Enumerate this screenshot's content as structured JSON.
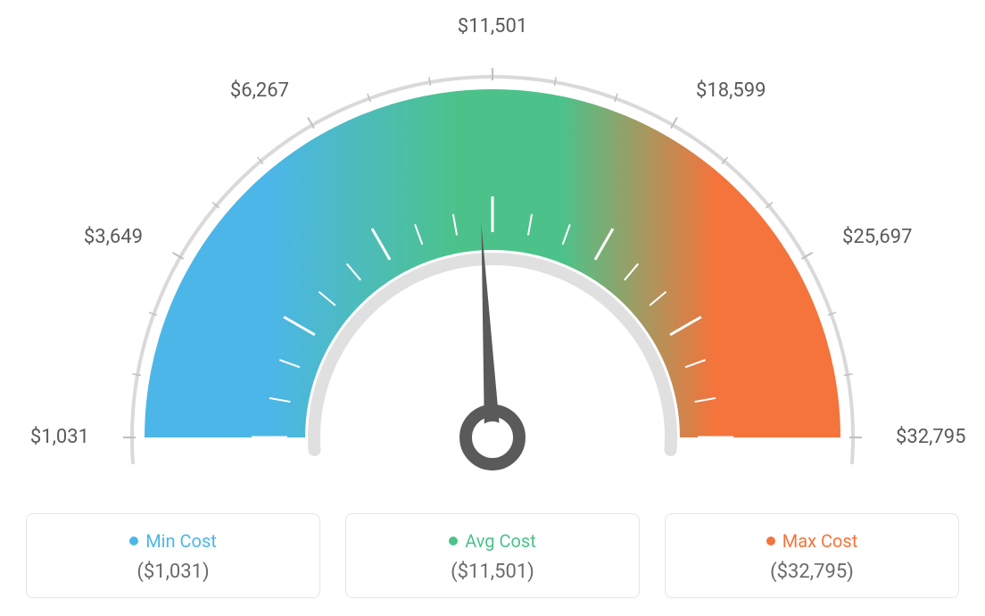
{
  "gauge": {
    "type": "gauge",
    "center_label": "$11,501",
    "min_value": 1031,
    "max_value": 32795,
    "avg_value": 11501,
    "ticks": [
      {
        "label": "$1,031",
        "angle_deg": -90
      },
      {
        "label": "$3,649",
        "angle_deg": -60
      },
      {
        "label": "$6,267",
        "angle_deg": -30
      },
      {
        "label": "$11,501",
        "angle_deg": 0
      },
      {
        "label": "$18,599",
        "angle_deg": 30
      },
      {
        "label": "$25,697",
        "angle_deg": 60
      },
      {
        "label": "$32,795",
        "angle_deg": 90
      }
    ],
    "needle_angle_deg": -3,
    "colors": {
      "min": "#4cb6e8",
      "mid": "#4cc28a",
      "max": "#f4743b",
      "outer_ring": "#d9d9d9",
      "inner_ring": "#e0e0e0",
      "tick_inner": "#ffffff",
      "tick_outer": "#bfbfbf",
      "needle": "#5a5a5a",
      "label_text": "#5a5a5a",
      "card_border": "#e5e5e5",
      "value_text": "#6b6b6b",
      "background": "#ffffff"
    },
    "band": {
      "outer_radius": 390,
      "inner_radius": 210,
      "outer_ring_width": 4,
      "inner_ring_width": 14
    },
    "tick_style": {
      "inner_len": 40,
      "outer_len": 14,
      "inner_width": 3,
      "outer_width": 2,
      "minor_per_gap": 2
    },
    "label_fontsize": 22,
    "legend_title_fontsize": 20,
    "legend_value_fontsize": 22
  },
  "legend": {
    "min": {
      "title": "Min Cost",
      "value": "($1,031)",
      "color": "#4cb6e8"
    },
    "avg": {
      "title": "Avg Cost",
      "value": "($11,501)",
      "color": "#4cc28a"
    },
    "max": {
      "title": "Max Cost",
      "value": "($32,795)",
      "color": "#f4743b"
    }
  }
}
